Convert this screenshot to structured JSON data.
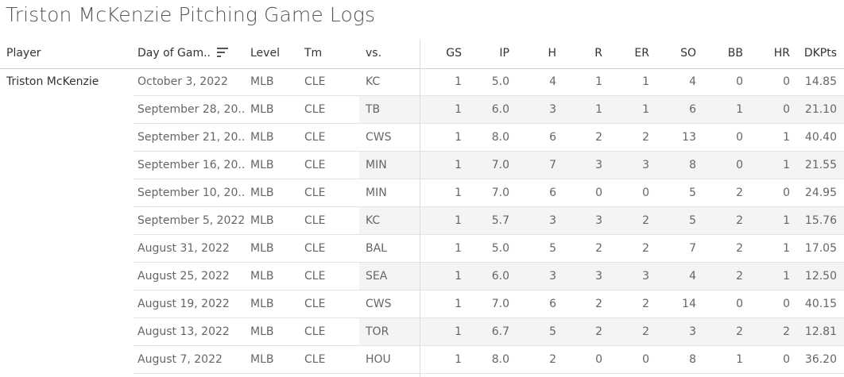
{
  "title": "Triston McKenzie Pitching Game Logs",
  "columns": {
    "player": "Player",
    "date": "Day of Gam..",
    "level": "Level",
    "tm": "Tm",
    "vs": "vs.",
    "gs": "GS",
    "ip": "IP",
    "h": "H",
    "r": "R",
    "er": "ER",
    "so": "SO",
    "bb": "BB",
    "hr": "HR",
    "dkpts": "DKPts"
  },
  "player_name": "Triston McKenzie",
  "sort_icon": "sort-descending-icon",
  "rows": [
    {
      "date": "October 3, 2022",
      "level": "MLB",
      "tm": "CLE",
      "vs": "KC",
      "gs": "1",
      "ip": "5.0",
      "h": "4",
      "r": "1",
      "er": "1",
      "so": "4",
      "bb": "0",
      "hr": "0",
      "dkpts": "14.85"
    },
    {
      "date": "September 28, 20..",
      "level": "MLB",
      "tm": "CLE",
      "vs": "TB",
      "gs": "1",
      "ip": "6.0",
      "h": "3",
      "r": "1",
      "er": "1",
      "so": "6",
      "bb": "1",
      "hr": "0",
      "dkpts": "21.10"
    },
    {
      "date": "September 21, 20..",
      "level": "MLB",
      "tm": "CLE",
      "vs": "CWS",
      "gs": "1",
      "ip": "8.0",
      "h": "6",
      "r": "2",
      "er": "2",
      "so": "13",
      "bb": "0",
      "hr": "1",
      "dkpts": "40.40"
    },
    {
      "date": "September 16, 20..",
      "level": "MLB",
      "tm": "CLE",
      "vs": "MIN",
      "gs": "1",
      "ip": "7.0",
      "h": "7",
      "r": "3",
      "er": "3",
      "so": "8",
      "bb": "0",
      "hr": "1",
      "dkpts": "21.55"
    },
    {
      "date": "September 10, 20..",
      "level": "MLB",
      "tm": "CLE",
      "vs": "MIN",
      "gs": "1",
      "ip": "7.0",
      "h": "6",
      "r": "0",
      "er": "0",
      "so": "5",
      "bb": "2",
      "hr": "0",
      "dkpts": "24.95"
    },
    {
      "date": "September 5, 2022",
      "level": "MLB",
      "tm": "CLE",
      "vs": "KC",
      "gs": "1",
      "ip": "5.7",
      "h": "3",
      "r": "3",
      "er": "2",
      "so": "5",
      "bb": "2",
      "hr": "1",
      "dkpts": "15.76"
    },
    {
      "date": "August 31, 2022",
      "level": "MLB",
      "tm": "CLE",
      "vs": "BAL",
      "gs": "1",
      "ip": "5.0",
      "h": "5",
      "r": "2",
      "er": "2",
      "so": "7",
      "bb": "2",
      "hr": "1",
      "dkpts": "17.05"
    },
    {
      "date": "August 25, 2022",
      "level": "MLB",
      "tm": "CLE",
      "vs": "SEA",
      "gs": "1",
      "ip": "6.0",
      "h": "3",
      "r": "3",
      "er": "3",
      "so": "4",
      "bb": "2",
      "hr": "1",
      "dkpts": "12.50"
    },
    {
      "date": "August 19, 2022",
      "level": "MLB",
      "tm": "CLE",
      "vs": "CWS",
      "gs": "1",
      "ip": "7.0",
      "h": "6",
      "r": "2",
      "er": "2",
      "so": "14",
      "bb": "0",
      "hr": "0",
      "dkpts": "40.15"
    },
    {
      "date": "August 13, 2022",
      "level": "MLB",
      "tm": "CLE",
      "vs": "TOR",
      "gs": "1",
      "ip": "6.7",
      "h": "5",
      "r": "2",
      "er": "2",
      "so": "3",
      "bb": "2",
      "hr": "2",
      "dkpts": "12.81"
    },
    {
      "date": "August 7, 2022",
      "level": "MLB",
      "tm": "CLE",
      "vs": "HOU",
      "gs": "1",
      "ip": "8.0",
      "h": "2",
      "r": "0",
      "er": "0",
      "so": "8",
      "bb": "1",
      "hr": "0",
      "dkpts": "36.20"
    }
  ]
}
